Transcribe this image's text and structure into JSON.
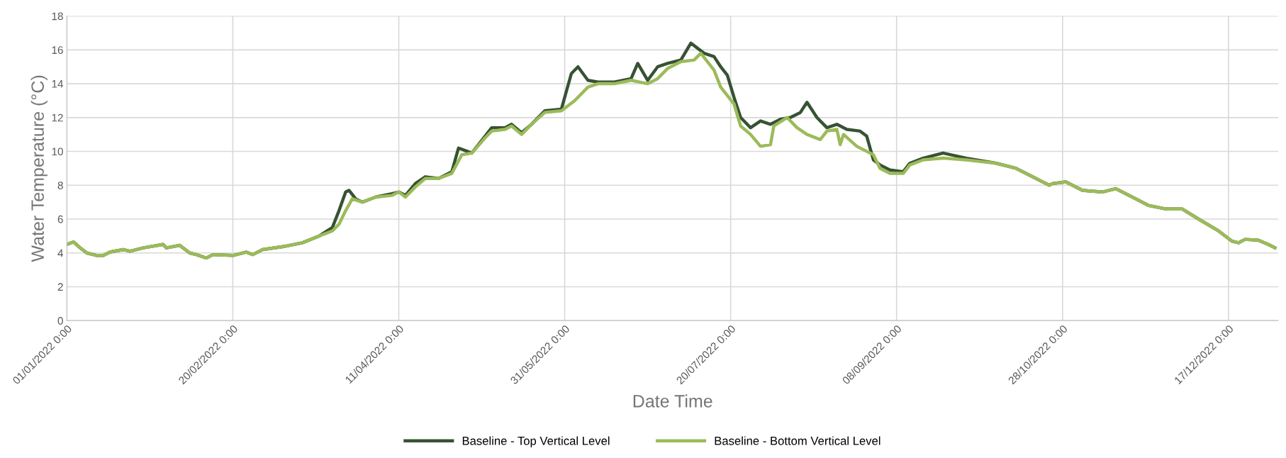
{
  "chart_data": {
    "type": "line",
    "xlabel": "Date Time",
    "ylabel": "Water Temperature (°C)",
    "grid": true,
    "legend": "bottom",
    "marker": "none",
    "line_style": "solid",
    "xlim": [
      "2022-01-01",
      "2023-01-01"
    ],
    "xticks": [
      {
        "value": "2022-01-01",
        "label": "01/01/2022 0:00"
      },
      {
        "value": "2022-02-20",
        "label": "20/02/2022 0:00"
      },
      {
        "value": "2022-04-11",
        "label": "11/04/2022 0:00"
      },
      {
        "value": "2022-05-31",
        "label": "31/05/2022 0:00"
      },
      {
        "value": "2022-07-20",
        "label": "20/07/2022 0:00"
      },
      {
        "value": "2022-09-08",
        "label": "08/09/2022 0:00"
      },
      {
        "value": "2022-10-28",
        "label": "28/10/2022 0:00"
      },
      {
        "value": "2022-12-17",
        "label": "17/12/2022 0:00"
      }
    ],
    "ylim": [
      0,
      18
    ],
    "yticks": [
      0,
      2,
      4,
      6,
      8,
      10,
      12,
      14,
      16,
      18
    ],
    "series": [
      {
        "name": "Baseline - Top Vertical Level",
        "color": "#375234",
        "x": [
          "2022-01-01",
          "2022-01-03",
          "2022-01-05",
          "2022-01-07",
          "2022-01-10",
          "2022-01-12",
          "2022-01-14",
          "2022-01-18",
          "2022-01-20",
          "2022-01-24",
          "2022-01-30",
          "2022-01-31",
          "2022-02-04",
          "2022-02-07",
          "2022-02-09",
          "2022-02-12",
          "2022-02-14",
          "2022-02-20",
          "2022-02-24",
          "2022-02-26",
          "2022-03-01",
          "2022-03-08",
          "2022-03-13",
          "2022-03-18",
          "2022-03-22",
          "2022-03-24",
          "2022-03-26",
          "2022-03-27",
          "2022-03-29",
          "2022-03-31",
          "2022-04-04",
          "2022-04-09",
          "2022-04-11",
          "2022-04-13",
          "2022-04-16",
          "2022-04-19",
          "2022-04-23",
          "2022-04-27",
          "2022-04-29",
          "2022-05-03",
          "2022-05-07",
          "2022-05-09",
          "2022-05-13",
          "2022-05-15",
          "2022-05-18",
          "2022-05-21",
          "2022-05-25",
          "2022-05-30",
          "2022-06-02",
          "2022-06-04",
          "2022-06-07",
          "2022-06-10",
          "2022-06-15",
          "2022-06-20",
          "2022-06-22",
          "2022-06-25",
          "2022-06-28",
          "2022-07-01",
          "2022-07-05",
          "2022-07-08",
          "2022-07-12",
          "2022-07-15",
          "2022-07-17",
          "2022-07-19",
          "2022-07-21",
          "2022-07-23",
          "2022-07-26",
          "2022-07-29",
          "2022-08-01",
          "2022-08-04",
          "2022-08-07",
          "2022-08-10",
          "2022-08-12",
          "2022-08-15",
          "2022-08-18",
          "2022-08-21",
          "2022-08-24",
          "2022-08-28",
          "2022-08-30",
          "2022-09-01",
          "2022-09-03",
          "2022-09-06",
          "2022-09-10",
          "2022-09-12",
          "2022-09-16",
          "2022-09-22",
          "2022-09-29",
          "2022-10-08",
          "2022-10-14",
          "2022-10-20",
          "2022-10-24",
          "2022-10-25",
          "2022-10-29",
          "2022-11-03",
          "2022-11-09",
          "2022-11-13",
          "2022-11-17",
          "2022-11-23",
          "2022-11-28",
          "2022-12-03",
          "2022-12-08",
          "2022-12-14",
          "2022-12-18",
          "2022-12-20",
          "2022-12-22",
          "2022-12-26",
          "2022-12-29",
          "2022-12-31"
        ],
        "values": [
          4.5,
          4.65,
          4.3,
          4.0,
          3.85,
          3.85,
          4.05,
          4.2,
          4.1,
          4.3,
          4.5,
          4.3,
          4.45,
          4.0,
          3.9,
          3.7,
          3.9,
          3.85,
          4.05,
          3.9,
          4.2,
          4.4,
          4.6,
          5.0,
          5.5,
          6.5,
          7.6,
          7.7,
          7.2,
          7.0,
          7.3,
          7.5,
          7.6,
          7.4,
          8.1,
          8.5,
          8.4,
          8.8,
          10.2,
          9.9,
          10.9,
          11.4,
          11.4,
          11.6,
          11.1,
          11.6,
          12.4,
          12.5,
          14.6,
          15.0,
          14.2,
          14.1,
          14.1,
          14.3,
          15.2,
          14.2,
          15.0,
          15.2,
          15.4,
          16.4,
          15.8,
          15.6,
          15.0,
          14.5,
          13.2,
          12.0,
          11.4,
          11.8,
          11.6,
          11.9,
          12.0,
          12.3,
          12.9,
          12.0,
          11.4,
          11.6,
          11.3,
          11.2,
          10.9,
          9.5,
          9.2,
          8.9,
          8.8,
          9.3,
          9.6,
          9.9,
          9.6,
          9.3,
          9.0,
          8.4,
          8.0,
          8.1,
          8.2,
          7.7,
          7.6,
          7.8,
          7.4,
          6.8,
          6.6,
          6.6,
          6.0,
          5.3,
          4.7,
          4.6,
          4.8,
          4.75,
          4.5,
          4.3
        ]
      },
      {
        "name": "Baseline - Bottom Vertical Level",
        "color": "#9bbb59",
        "x": [
          "2022-01-01",
          "2022-01-03",
          "2022-01-05",
          "2022-01-07",
          "2022-01-10",
          "2022-01-12",
          "2022-01-14",
          "2022-01-18",
          "2022-01-20",
          "2022-01-24",
          "2022-01-30",
          "2022-01-31",
          "2022-02-04",
          "2022-02-07",
          "2022-02-09",
          "2022-02-12",
          "2022-02-14",
          "2022-02-20",
          "2022-02-24",
          "2022-02-26",
          "2022-03-01",
          "2022-03-08",
          "2022-03-13",
          "2022-03-18",
          "2022-03-22",
          "2022-03-24",
          "2022-03-26",
          "2022-03-28",
          "2022-03-31",
          "2022-04-04",
          "2022-04-09",
          "2022-04-11",
          "2022-04-13",
          "2022-04-16",
          "2022-04-19",
          "2022-04-23",
          "2022-04-27",
          "2022-04-30",
          "2022-05-03",
          "2022-05-07",
          "2022-05-09",
          "2022-05-13",
          "2022-05-15",
          "2022-05-18",
          "2022-05-21",
          "2022-05-25",
          "2022-05-30",
          "2022-06-03",
          "2022-06-07",
          "2022-06-10",
          "2022-06-15",
          "2022-06-20",
          "2022-06-25",
          "2022-06-28",
          "2022-07-01",
          "2022-07-05",
          "2022-07-09",
          "2022-07-11",
          "2022-07-15",
          "2022-07-17",
          "2022-07-21",
          "2022-07-23",
          "2022-07-26",
          "2022-07-29",
          "2022-08-01",
          "2022-08-02",
          "2022-08-06",
          "2022-08-09",
          "2022-08-12",
          "2022-08-16",
          "2022-08-18",
          "2022-08-21",
          "2022-08-22",
          "2022-08-23",
          "2022-08-27",
          "2022-09-01",
          "2022-09-03",
          "2022-09-06",
          "2022-09-10",
          "2022-09-12",
          "2022-09-16",
          "2022-09-22",
          "2022-09-29",
          "2022-10-08",
          "2022-10-14",
          "2022-10-20",
          "2022-10-24",
          "2022-10-25",
          "2022-10-29",
          "2022-11-03",
          "2022-11-09",
          "2022-11-13",
          "2022-11-17",
          "2022-11-23",
          "2022-11-28",
          "2022-12-03",
          "2022-12-08",
          "2022-12-14",
          "2022-12-18",
          "2022-12-20",
          "2022-12-22",
          "2022-12-26",
          "2022-12-29",
          "2022-12-31"
        ],
        "values": [
          4.5,
          4.65,
          4.3,
          4.0,
          3.85,
          3.85,
          4.05,
          4.2,
          4.1,
          4.3,
          4.5,
          4.3,
          4.45,
          4.0,
          3.9,
          3.7,
          3.9,
          3.85,
          4.05,
          3.9,
          4.2,
          4.4,
          4.6,
          5.0,
          5.3,
          5.7,
          6.5,
          7.2,
          7.0,
          7.3,
          7.4,
          7.6,
          7.3,
          7.9,
          8.4,
          8.4,
          8.7,
          9.8,
          9.9,
          10.8,
          11.2,
          11.3,
          11.5,
          11.0,
          11.6,
          12.3,
          12.4,
          13.0,
          13.8,
          14.0,
          14.0,
          14.2,
          14.0,
          14.3,
          14.9,
          15.3,
          15.4,
          15.8,
          14.8,
          13.8,
          12.8,
          11.5,
          11.0,
          10.3,
          10.4,
          11.5,
          12.0,
          11.4,
          11.0,
          10.7,
          11.2,
          11.3,
          10.4,
          11.0,
          10.3,
          9.8,
          9.0,
          8.7,
          8.7,
          9.2,
          9.5,
          9.6,
          9.5,
          9.3,
          9.0,
          8.4,
          8.0,
          8.1,
          8.2,
          7.7,
          7.6,
          7.8,
          7.4,
          6.8,
          6.6,
          6.6,
          6.0,
          5.3,
          4.7,
          4.6,
          4.8,
          4.75,
          4.5,
          4.3
        ]
      }
    ]
  }
}
